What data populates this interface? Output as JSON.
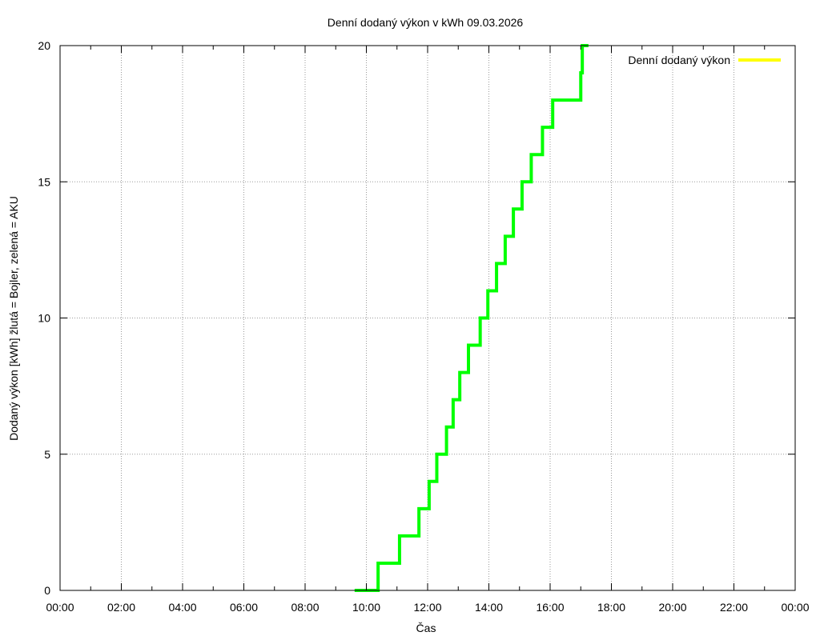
{
  "chart_data": {
    "type": "line",
    "title": "Denní dodaný výkon v kWh 09.03.2026",
    "xlabel": "Čas",
    "ylabel": "Dodaný výkon [kWh]  žlutá = Bojler, zelená = AKU",
    "xlim": [
      "00:00",
      "24:00"
    ],
    "ylim": [
      0,
      20
    ],
    "x_ticks": [
      "00:00",
      "02:00",
      "04:00",
      "06:00",
      "08:00",
      "10:00",
      "12:00",
      "14:00",
      "16:00",
      "18:00",
      "20:00",
      "22:00",
      "00:00"
    ],
    "y_ticks": [
      0,
      5,
      10,
      15,
      20
    ],
    "grid": true,
    "legend": {
      "position": "top-right",
      "entries": [
        {
          "label": "Denní dodaný výkon",
          "color": "#ffff00"
        }
      ]
    },
    "series": [
      {
        "name": "Denní dodaný výkon",
        "color": "#ffff00",
        "points": []
      },
      {
        "color": "#00ff00",
        "step": "post",
        "points": [
          [
            "09:37",
            0
          ],
          [
            "09:40",
            0
          ],
          [
            "09:55",
            0
          ],
          [
            "10:20",
            0
          ],
          [
            "10:23",
            1
          ],
          [
            "11:05",
            2
          ],
          [
            "11:43",
            3
          ],
          [
            "12:03",
            4
          ],
          [
            "12:18",
            5
          ],
          [
            "12:37",
            6
          ],
          [
            "12:50",
            7
          ],
          [
            "13:03",
            8
          ],
          [
            "13:20",
            9
          ],
          [
            "13:38",
            9
          ],
          [
            "13:43",
            10
          ],
          [
            "13:58",
            11
          ],
          [
            "14:15",
            12
          ],
          [
            "14:32",
            13
          ],
          [
            "14:48",
            14
          ],
          [
            "15:05",
            15
          ],
          [
            "15:23",
            16
          ],
          [
            "15:45",
            17
          ],
          [
            "16:05",
            18
          ],
          [
            "17:00",
            19
          ],
          [
            "17:03",
            20
          ],
          [
            "17:15",
            20
          ]
        ]
      }
    ]
  }
}
